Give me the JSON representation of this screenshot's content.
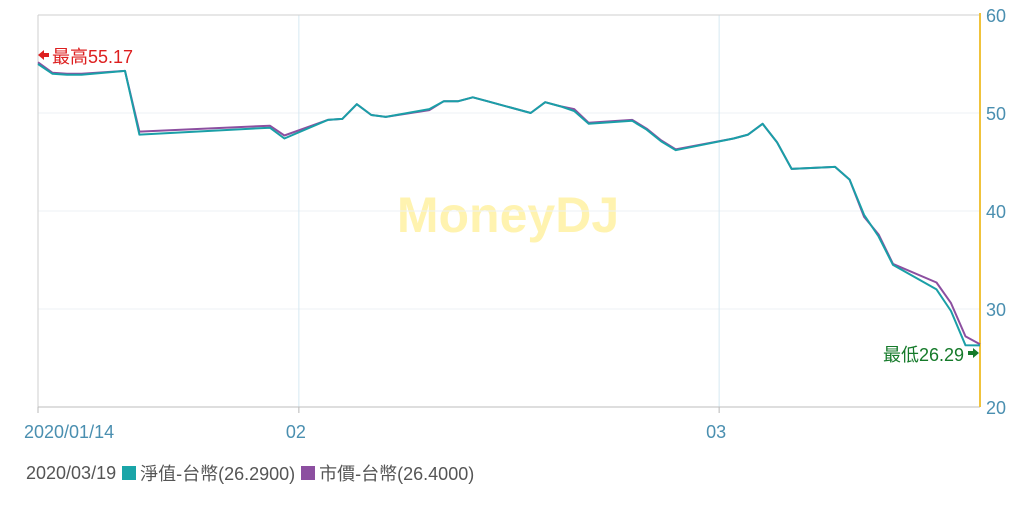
{
  "chart_data": {
    "type": "line",
    "watermark": "MoneyDJ",
    "x_tick_labels": [
      "2020/01/14",
      "02",
      "03"
    ],
    "y_tick_labels": [
      "20",
      "30",
      "40",
      "50",
      "60"
    ],
    "ylim": [
      20,
      60
    ],
    "grid": true,
    "legend_position": "bottom-left",
    "series": [
      {
        "name": "淨值-台幣",
        "color": "#1a9fa7",
        "x": [
          "2020-01-14",
          "2020-01-15",
          "2020-01-16",
          "2020-01-17",
          "2020-01-20",
          "2020-01-21",
          "2020-01-30",
          "2020-01-31",
          "2020-02-03",
          "2020-02-04",
          "2020-02-05",
          "2020-02-06",
          "2020-02-07",
          "2020-02-10",
          "2020-02-11",
          "2020-02-12",
          "2020-02-13",
          "2020-02-14",
          "2020-02-17",
          "2020-02-18",
          "2020-02-19",
          "2020-02-20",
          "2020-02-21",
          "2020-02-24",
          "2020-02-25",
          "2020-02-26",
          "2020-02-27",
          "2020-03-02",
          "2020-03-03",
          "2020-03-04",
          "2020-03-05",
          "2020-03-06",
          "2020-03-09",
          "2020-03-10",
          "2020-03-11",
          "2020-03-12",
          "2020-03-13",
          "2020-03-16",
          "2020-03-17",
          "2020-03-18",
          "2020-03-19"
        ],
        "values": [
          55.0,
          54.0,
          53.9,
          53.9,
          54.3,
          47.8,
          48.5,
          47.4,
          49.3,
          49.4,
          50.9,
          49.8,
          49.6,
          50.4,
          51.2,
          51.2,
          51.6,
          51.2,
          50.0,
          51.1,
          50.7,
          50.2,
          48.9,
          49.2,
          48.3,
          47.1,
          46.2,
          47.4,
          47.8,
          48.9,
          47.0,
          44.3,
          44.5,
          43.2,
          39.6,
          37.4,
          34.5,
          32.0,
          29.8,
          26.3,
          26.29
        ]
      },
      {
        "name": "市價-台幣",
        "color": "#8c4fa0",
        "x": [
          "2020-01-14",
          "2020-01-15",
          "2020-01-16",
          "2020-01-17",
          "2020-01-20",
          "2020-01-21",
          "2020-01-30",
          "2020-01-31",
          "2020-02-03",
          "2020-02-04",
          "2020-02-05",
          "2020-02-06",
          "2020-02-07",
          "2020-02-10",
          "2020-02-11",
          "2020-02-12",
          "2020-02-13",
          "2020-02-14",
          "2020-02-17",
          "2020-02-18",
          "2020-02-19",
          "2020-02-20",
          "2020-02-21",
          "2020-02-24",
          "2020-02-25",
          "2020-02-26",
          "2020-02-27",
          "2020-03-02",
          "2020-03-03",
          "2020-03-04",
          "2020-03-05",
          "2020-03-06",
          "2020-03-09",
          "2020-03-10",
          "2020-03-11",
          "2020-03-12",
          "2020-03-13",
          "2020-03-16",
          "2020-03-17",
          "2020-03-18",
          "2020-03-19"
        ],
        "values": [
          55.17,
          54.1,
          54.0,
          54.0,
          54.3,
          48.1,
          48.7,
          47.7,
          49.3,
          49.4,
          50.9,
          49.8,
          49.6,
          50.3,
          51.2,
          51.2,
          51.6,
          51.2,
          50.0,
          51.1,
          50.7,
          50.4,
          49.0,
          49.3,
          48.4,
          47.2,
          46.3,
          47.4,
          47.8,
          48.9,
          47.0,
          44.3,
          44.5,
          43.2,
          39.4,
          37.6,
          34.6,
          32.7,
          30.6,
          27.2,
          26.4
        ]
      }
    ],
    "annotations": {
      "max_label": "最高55.17",
      "min_label": "最低26.29"
    }
  },
  "legend": {
    "date": "2020/03/19",
    "items": [
      {
        "label": "淨值-台幣(26.2900)",
        "color": "#1aa5a8"
      },
      {
        "label": "市價-台幣(26.4000)",
        "color": "#8c4fa0"
      }
    ]
  }
}
